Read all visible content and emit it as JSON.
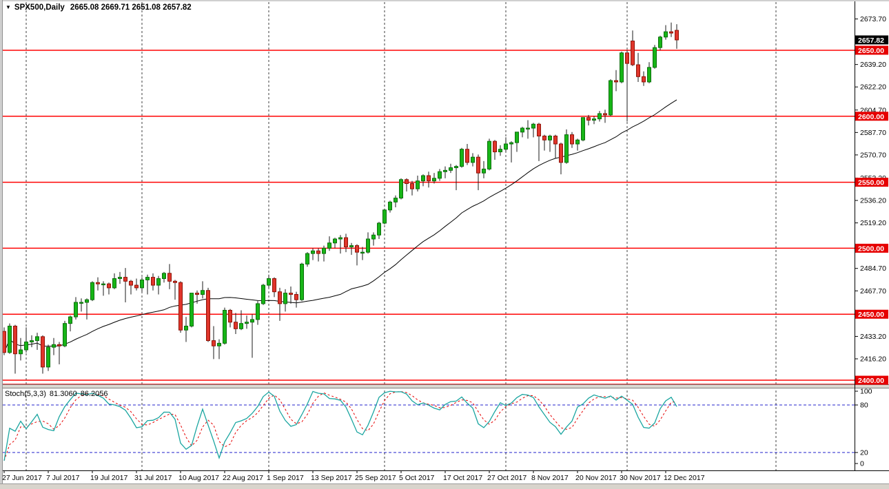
{
  "title": {
    "dropdown_icon": "▼",
    "symbol": "SPX500,Daily",
    "ohlc": "2665.08 2669.71 2651.08 2657.82"
  },
  "chart_data": {
    "type": "candlestick",
    "symbol": "SPX500",
    "period": "Daily",
    "last_ohlc": {
      "open": 2665.08,
      "high": 2669.71,
      "low": 2651.08,
      "close": 2657.82
    },
    "current_price": 2657.82,
    "ylim": [
      2396.9,
      2686.5
    ],
    "price_ticks": [
      2673.7,
      2639.2,
      2622.2,
      2604.7,
      2587.7,
      2570.7,
      2553.2,
      2536.2,
      2519.2,
      2484.7,
      2467.7,
      2433.2,
      2416.2
    ],
    "support_resistance_levels": [
      2650.0,
      2600.0,
      2550.0,
      2500.0,
      2450.0,
      2400.0
    ],
    "extra_red_line": 2397.0,
    "ma_period": 30,
    "x_labels": [
      "27 Jun 2017",
      "7 Jul 2017",
      "19 Jul 2017",
      "31 Jul 2017",
      "10 Aug 2017",
      "22 Aug 2017",
      "1 Sep 2017",
      "13 Sep 2017",
      "25 Sep 2017",
      "5 Oct 2017",
      "17 Oct 2017",
      "27 Oct 2017",
      "8 Nov 2017",
      "20 Nov 2017",
      "30 Nov 2017",
      "12 Dec 2017"
    ],
    "x_label_step": 8,
    "month_gridline_indices": [
      4,
      25,
      48,
      69,
      91,
      113,
      140
    ],
    "candles": [
      [
        2437,
        2440,
        2419,
        2421
      ],
      [
        2421,
        2443,
        2420,
        2441
      ],
      [
        2441,
        2442,
        2405,
        2420
      ],
      [
        2420,
        2432,
        2415,
        2423
      ],
      [
        2423,
        2440,
        2421,
        2429
      ],
      [
        2429,
        2434,
        2425,
        2430
      ],
      [
        2430,
        2436,
        2423,
        2433
      ],
      [
        2433,
        2434,
        2405,
        2410
      ],
      [
        2410,
        2427,
        2407,
        2425
      ],
      [
        2425,
        2432,
        2419,
        2427
      ],
      [
        2427,
        2429,
        2412,
        2426
      ],
      [
        2426,
        2445,
        2425,
        2443
      ],
      [
        2443,
        2449,
        2437,
        2448
      ],
      [
        2448,
        2463,
        2446,
        2459
      ],
      [
        2459,
        2462,
        2452,
        2459
      ],
      [
        2459,
        2462,
        2446,
        2461
      ],
      [
        2461,
        2475,
        2460,
        2474
      ],
      [
        2474,
        2478,
        2468,
        2473
      ],
      [
        2473,
        2475,
        2464,
        2473
      ],
      [
        2473,
        2474,
        2465,
        2470
      ],
      [
        2470,
        2481,
        2469,
        2477
      ],
      [
        2477,
        2482,
        2473,
        2478
      ],
      [
        2478,
        2485,
        2459,
        2475
      ],
      [
        2475,
        2476,
        2465,
        2472
      ],
      [
        2472,
        2477,
        2468,
        2470
      ],
      [
        2470,
        2478,
        2467,
        2476
      ],
      [
        2476,
        2480,
        2465,
        2478
      ],
      [
        2478,
        2481,
        2468,
        2472
      ],
      [
        2472,
        2479,
        2465,
        2477
      ],
      [
        2477,
        2482,
        2474,
        2481
      ],
      [
        2481,
        2488,
        2469,
        2475
      ],
      [
        2475,
        2476,
        2461,
        2474
      ],
      [
        2474,
        2475,
        2436,
        2438
      ],
      [
        2438,
        2448,
        2429,
        2441
      ],
      [
        2441,
        2466,
        2440,
        2466
      ],
      [
        2466,
        2468,
        2458,
        2465
      ],
      [
        2465,
        2475,
        2462,
        2468
      ],
      [
        2468,
        2470,
        2429,
        2430
      ],
      [
        2430,
        2441,
        2416,
        2426
      ],
      [
        2426,
        2431,
        2416,
        2428
      ],
      [
        2428,
        2455,
        2427,
        2453
      ],
      [
        2453,
        2454,
        2440,
        2444
      ],
      [
        2444,
        2451,
        2435,
        2439
      ],
      [
        2439,
        2453,
        2438,
        2443
      ],
      [
        2443,
        2449,
        2439,
        2444
      ],
      [
        2444,
        2450,
        2417,
        2446
      ],
      [
        2446,
        2460,
        2442,
        2458
      ],
      [
        2458,
        2473,
        2457,
        2472
      ],
      [
        2472,
        2480,
        2470,
        2477
      ],
      [
        2477,
        2478,
        2463,
        2467
      ],
      [
        2467,
        2470,
        2445,
        2458
      ],
      [
        2458,
        2469,
        2452,
        2466
      ],
      [
        2466,
        2471,
        2458,
        2465
      ],
      [
        2465,
        2467,
        2455,
        2461
      ],
      [
        2461,
        2489,
        2460,
        2488
      ],
      [
        2488,
        2497,
        2486,
        2496
      ],
      [
        2496,
        2500,
        2491,
        2498
      ],
      [
        2498,
        2500,
        2490,
        2496
      ],
      [
        2496,
        2502,
        2490,
        2500
      ],
      [
        2500,
        2509,
        2498,
        2504
      ],
      [
        2504,
        2508,
        2500,
        2507
      ],
      [
        2507,
        2510,
        2496,
        2508
      ],
      [
        2508,
        2511,
        2497,
        2501
      ],
      [
        2501,
        2504,
        2495,
        2502
      ],
      [
        2502,
        2503,
        2487,
        2497
      ],
      [
        2497,
        2501,
        2491,
        2497
      ],
      [
        2497,
        2512,
        2496,
        2507
      ],
      [
        2507,
        2512,
        2502,
        2510
      ],
      [
        2510,
        2520,
        2507,
        2519
      ],
      [
        2519,
        2530,
        2518,
        2529
      ],
      [
        2529,
        2536,
        2527,
        2535
      ],
      [
        2535,
        2540,
        2531,
        2538
      ],
      [
        2538,
        2553,
        2537,
        2552
      ],
      [
        2552,
        2553,
        2543,
        2549
      ],
      [
        2549,
        2551,
        2540,
        2545
      ],
      [
        2545,
        2555,
        2543,
        2551
      ],
      [
        2551,
        2556,
        2547,
        2555
      ],
      [
        2555,
        2558,
        2546,
        2551
      ],
      [
        2551,
        2557,
        2549,
        2553
      ],
      [
        2553,
        2560,
        2551,
        2558
      ],
      [
        2558,
        2562,
        2553,
        2559
      ],
      [
        2559,
        2564,
        2557,
        2561
      ],
      [
        2561,
        2563,
        2544,
        2562
      ],
      [
        2562,
        2576,
        2561,
        2575
      ],
      [
        2575,
        2579,
        2563,
        2565
      ],
      [
        2565,
        2572,
        2562,
        2569
      ],
      [
        2569,
        2571,
        2544,
        2557
      ],
      [
        2557,
        2566,
        2553,
        2560
      ],
      [
        2560,
        2583,
        2559,
        2581
      ],
      [
        2581,
        2582,
        2567,
        2573
      ],
      [
        2573,
        2578,
        2570,
        2575
      ],
      [
        2575,
        2584,
        2573,
        2579
      ],
      [
        2579,
        2581,
        2565,
        2580
      ],
      [
        2580,
        2588,
        2573,
        2588
      ],
      [
        2588,
        2592,
        2584,
        2591
      ],
      [
        2591,
        2597,
        2583,
        2591
      ],
      [
        2591,
        2595,
        2584,
        2594
      ],
      [
        2594,
        2595,
        2566,
        2585
      ],
      [
        2585,
        2586,
        2574,
        2582
      ],
      [
        2582,
        2586,
        2573,
        2585
      ],
      [
        2585,
        2586,
        2568,
        2579
      ],
      [
        2579,
        2580,
        2556,
        2565
      ],
      [
        2565,
        2590,
        2564,
        2586
      ],
      [
        2586,
        2588,
        2576,
        2579
      ],
      [
        2579,
        2583,
        2574,
        2582
      ],
      [
        2582,
        2599,
        2581,
        2599
      ],
      [
        2599,
        2601,
        2593,
        2597
      ],
      [
        2597,
        2600,
        2594,
        2598
      ],
      [
        2598,
        2604,
        2596,
        2602
      ],
      [
        2602,
        2605,
        2595,
        2601
      ],
      [
        2601,
        2628,
        2600,
        2627
      ],
      [
        2627,
        2635,
        2619,
        2626
      ],
      [
        2626,
        2649,
        2625,
        2648
      ],
      [
        2648,
        2650,
        2596,
        2640
      ],
      [
        2657,
        2665,
        2638,
        2639
      ],
      [
        2639,
        2648,
        2626,
        2630
      ],
      [
        2630,
        2634,
        2623,
        2626
      ],
      [
        2626,
        2641,
        2625,
        2637
      ],
      [
        2637,
        2654,
        2636,
        2652
      ],
      [
        2652,
        2661,
        2650,
        2660
      ],
      [
        2660,
        2669,
        2658,
        2664
      ],
      [
        2664,
        2671,
        2660,
        2663
      ],
      [
        2665.08,
        2669.71,
        2651.08,
        2657.82
      ]
    ],
    "stoch": {
      "label": "Stoch(5,3,3)",
      "k_value": "81.3060",
      "d_value": "86.2056",
      "params": [
        5,
        3,
        3
      ],
      "ticks": [
        100,
        80,
        20,
        0
      ],
      "level_lines": [
        80,
        20
      ],
      "ylim": [
        0,
        100
      ]
    },
    "colors": {
      "bull": "#17b517",
      "bull_border": "#0b6e0b",
      "bear": "#e0352b",
      "bear_border": "#8e1408",
      "wick": "#1a1a1a",
      "ma_line": "#000000",
      "sr_line": "#ff0303",
      "sr_tag_bg": "#e60000",
      "price_tag_bg": "#000000",
      "stoch_k": "#1aa5a0",
      "stoch_d": "#e60000",
      "stoch_level": "#2020cc",
      "grid": "#3c3c3c",
      "axis_text": "#000000"
    }
  }
}
